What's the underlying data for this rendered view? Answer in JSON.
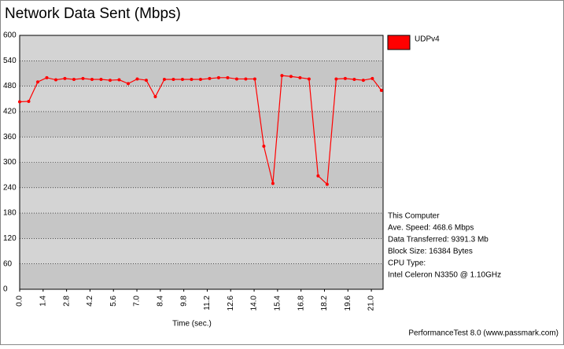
{
  "chart_data": {
    "type": "line",
    "title": "Network Data Sent (Mbps)",
    "x_label": "Time (sec.)",
    "x": [
      0,
      0.54,
      1.08,
      1.62,
      2.16,
      2.7,
      3.24,
      3.78,
      4.32,
      4.86,
      5.4,
      5.94,
      6.48,
      7.02,
      7.56,
      8.1,
      8.64,
      9.18,
      9.72,
      10.26,
      10.8,
      11.34,
      11.88,
      12.42,
      12.96,
      13.5,
      14.04,
      14.58,
      15.12,
      15.66,
      16.2,
      16.74,
      17.28,
      17.82,
      18.36,
      18.9,
      19.44,
      19.98,
      20.52,
      21.06,
      21.6
    ],
    "series": [
      {
        "name": "UDPv4",
        "color": "#ff0000",
        "values": [
          443,
          444,
          490,
          500,
          495,
          498,
          496,
          498,
          496,
          496,
          494,
          495,
          486,
          497,
          494,
          455,
          496,
          496,
          496,
          496,
          496,
          498,
          500,
          500,
          497,
          497,
          497,
          338,
          250,
          505,
          503,
          500,
          497,
          268,
          248,
          497,
          498,
          496,
          494,
          498,
          470
        ]
      }
    ],
    "xlim": [
      0,
      21.7
    ],
    "xticks": [
      {
        "value": 0,
        "label": "0.0"
      },
      1.4,
      2.8,
      4.2,
      5.6,
      {
        "value": 7,
        "label": "7.0"
      },
      8.4,
      9.8,
      11.2,
      12.6,
      {
        "value": 14,
        "label": "14.0"
      },
      15.4,
      16.8,
      18.2,
      19.6,
      {
        "value": 21,
        "label": "21.0"
      }
    ],
    "ylim": [
      0,
      600
    ],
    "yticks": [
      0,
      60,
      120,
      180,
      240,
      300,
      360,
      420,
      480,
      540,
      600
    ],
    "grid": true,
    "legend": "top-right",
    "info": [
      "This Computer",
      "Ave. Speed: 468.6 Mbps",
      "Data Transferred: 9391.3 Mb",
      "Block Size: 16384 Bytes",
      "CPU Type:",
      "Intel Celeron N3350 @ 1.10GHz"
    ],
    "footer": "PerformanceTest 8.0 (www.passmark.com)"
  }
}
